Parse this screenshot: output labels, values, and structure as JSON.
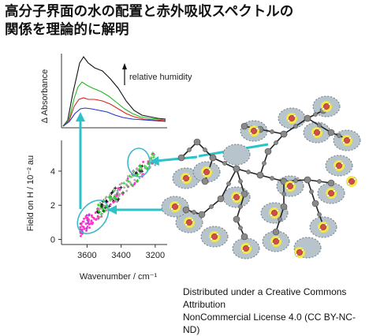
{
  "title": {
    "line1": "高分子界面の水の配置と赤外吸収スペクトルの",
    "line2": "関係を理論的に解明"
  },
  "top_panel": {
    "ylabel": "Δ Absorbance",
    "annotation": "relative humidity",
    "series_colors": [
      "#111111",
      "#22b822",
      "#dd2222",
      "#2233cc"
    ]
  },
  "chart_data": {
    "type": "scatter",
    "xlabel": "Wavenumber / cm⁻¹",
    "ylabel": "Field on H / 10⁻² au",
    "x_ticks": [
      "3600",
      "3400",
      "3200"
    ],
    "y_ticks": [
      "0",
      "2",
      "4"
    ],
    "xlim": [
      3750,
      3130
    ],
    "ylim": [
      -0.3,
      5.8
    ],
    "x_reversed": true
  },
  "license": {
    "line1": "Distributed under a Creative Commons Attribution",
    "line2": "NonCommercial License 4.0 (CC BY-NC-ND)"
  },
  "colors": {
    "arrow": "#2cc3c8",
    "ellipse": "#3fb6c9",
    "water_halo": "#f2e84a",
    "water_patch": "#b8c4cc",
    "oxygen": "#d64a4a",
    "carbon": "#8a8a8a",
    "bond": "#222222"
  }
}
